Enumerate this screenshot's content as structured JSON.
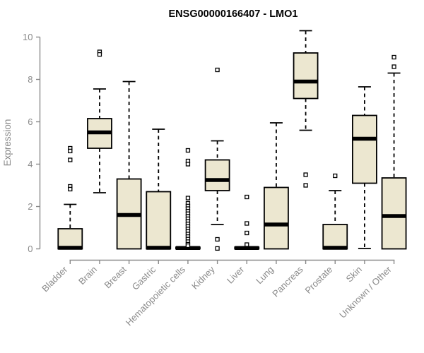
{
  "figure": {
    "title": "ENSG00000166407 - LMO1",
    "ylabel": "Expression"
  },
  "colors": {
    "box_fill": "#ece7d0",
    "box_border": "#000000",
    "median": "#000000",
    "axis_line": "#8a8a8a",
    "axis_text": "#8a8a8a",
    "title_text": "#000000",
    "background": "#ffffff"
  },
  "chart_data": {
    "type": "boxplot",
    "title": "ENSG00000166407 - LMO1",
    "xlabel": "",
    "ylabel": "Expression",
    "ylim": [
      0,
      10
    ],
    "yticks": [
      0,
      2,
      4,
      6,
      8,
      10
    ],
    "grid": false,
    "legend": false,
    "x_label_rotation_deg": 45,
    "categories": [
      "Bladder",
      "Brain",
      "Breast",
      "Gastric",
      "Hematopoietic cells",
      "Kidney",
      "Liver",
      "Lung",
      "Pancreas",
      "Prostate",
      "Skin",
      "Unknown / Other"
    ],
    "series": [
      {
        "name": "Bladder",
        "whisker_low": 0,
        "q1": 0,
        "median": 0.05,
        "q3": 0.95,
        "whisker_high": 2.1,
        "outliers": [
          4.75,
          4.62,
          4.2,
          2.95,
          2.82
        ]
      },
      {
        "name": "Brain",
        "whisker_low": 2.65,
        "q1": 4.75,
        "median": 5.5,
        "q3": 6.15,
        "whisker_high": 7.55,
        "outliers": [
          9.3,
          9.18
        ]
      },
      {
        "name": "Breast",
        "whisker_low": 0,
        "q1": 0,
        "median": 1.6,
        "q3": 3.3,
        "whisker_high": 7.9,
        "outliers": []
      },
      {
        "name": "Gastric",
        "whisker_low": 0,
        "q1": 0,
        "median": 0.05,
        "q3": 2.7,
        "whisker_high": 5.65,
        "outliers": []
      },
      {
        "name": "Hematopoietic cells",
        "whisker_low": 0,
        "q1": 0,
        "median": 0.04,
        "q3": 0.08,
        "whisker_high": 0.08,
        "outliers": [
          4.65,
          4.15,
          4.0,
          2.4,
          2.15,
          2.02,
          1.9,
          1.78,
          1.66,
          1.54,
          1.42,
          1.3,
          1.18,
          1.06,
          0.94,
          0.82,
          0.7,
          0.58,
          0.46,
          0.34,
          0.22,
          0.15
        ]
      },
      {
        "name": "Kidney",
        "whisker_low": 1.15,
        "q1": 2.75,
        "median": 3.25,
        "q3": 4.2,
        "whisker_high": 5.1,
        "outliers": [
          8.45,
          0.45,
          0.02
        ]
      },
      {
        "name": "Liver",
        "whisker_low": 0,
        "q1": 0,
        "median": 0.04,
        "q3": 0.08,
        "whisker_high": 0.08,
        "outliers": [
          2.45,
          1.2,
          0.75,
          0.2
        ]
      },
      {
        "name": "Lung",
        "whisker_low": 0,
        "q1": 0,
        "median": 1.15,
        "q3": 2.9,
        "whisker_high": 5.95,
        "outliers": []
      },
      {
        "name": "Pancreas",
        "whisker_low": 5.6,
        "q1": 7.1,
        "median": 7.9,
        "q3": 9.25,
        "whisker_high": 10.3,
        "outliers": [
          3.5,
          3.0
        ]
      },
      {
        "name": "Prostate",
        "whisker_low": 0,
        "q1": 0,
        "median": 0.05,
        "q3": 1.15,
        "whisker_high": 2.75,
        "outliers": [
          3.45
        ]
      },
      {
        "name": "Skin",
        "whisker_low": 0.02,
        "q1": 3.1,
        "median": 5.2,
        "q3": 6.3,
        "whisker_high": 7.65,
        "outliers": []
      },
      {
        "name": "Unknown / Other",
        "whisker_low": 0,
        "q1": 0,
        "median": 1.55,
        "q3": 3.35,
        "whisker_high": 8.3,
        "outliers": [
          9.05,
          8.6
        ]
      }
    ]
  }
}
